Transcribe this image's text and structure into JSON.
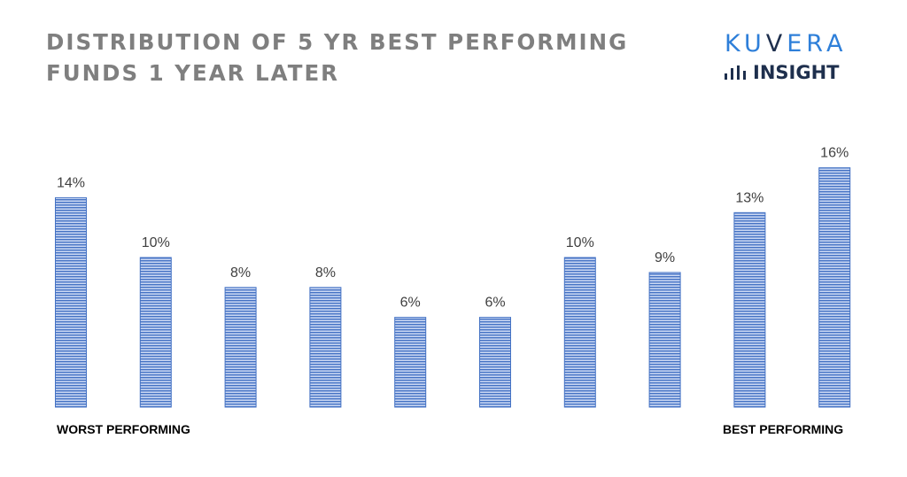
{
  "title": {
    "line1": "DISTRIBUTION OF 5 YR BEST PERFORMING",
    "line2": "FUNDS 1 YEAR LATER"
  },
  "brand": {
    "name": "KUVERA",
    "sub": "INSIGHT",
    "icon": "bar-chart-icon",
    "colors": {
      "accent": "#2e7fd9",
      "dark": "#1e2f4d"
    }
  },
  "chart_data": {
    "type": "bar",
    "categories": [
      "",
      "",
      "",
      "",
      "",
      "",
      "",
      "",
      "",
      ""
    ],
    "values": [
      14,
      10,
      8,
      8,
      6,
      6,
      10,
      9,
      13,
      16
    ],
    "value_labels": [
      "14%",
      "10%",
      "8%",
      "8%",
      "6%",
      "6%",
      "10%",
      "9%",
      "13%",
      "16%"
    ],
    "axis_labels": {
      "left": "WORST PERFORMING",
      "right": "BEST PERFORMING"
    },
    "title": "DISTRIBUTION OF 5 YR BEST PERFORMING FUNDS 1 YEAR LATER",
    "unit": "%",
    "grid": false,
    "colors": {
      "bar_fill": "#c9d7f3",
      "bar_stripe": "#4472c4",
      "bar_border": "#4472c4"
    }
  }
}
